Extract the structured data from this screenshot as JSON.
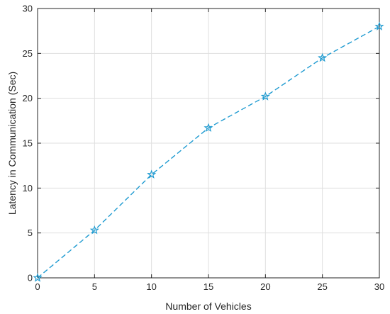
{
  "chart_data": {
    "type": "line",
    "title": "",
    "xlabel": "Number of Vehicles",
    "ylabel": "Latency in Communication (Sec)",
    "xlim": [
      0,
      30
    ],
    "ylim": [
      0,
      30
    ],
    "xticks": [
      0,
      5,
      10,
      15,
      20,
      25,
      30
    ],
    "yticks": [
      0,
      5,
      10,
      15,
      20,
      25,
      30
    ],
    "grid": true,
    "legend": "none",
    "series": [
      {
        "x": [
          0,
          5,
          10,
          15,
          20,
          25,
          30
        ],
        "y": [
          0,
          5.3,
          11.5,
          16.7,
          20.2,
          24.5,
          28.0
        ],
        "color": "#1f9bd1",
        "line_style": "dashed",
        "marker": "star"
      }
    ]
  }
}
